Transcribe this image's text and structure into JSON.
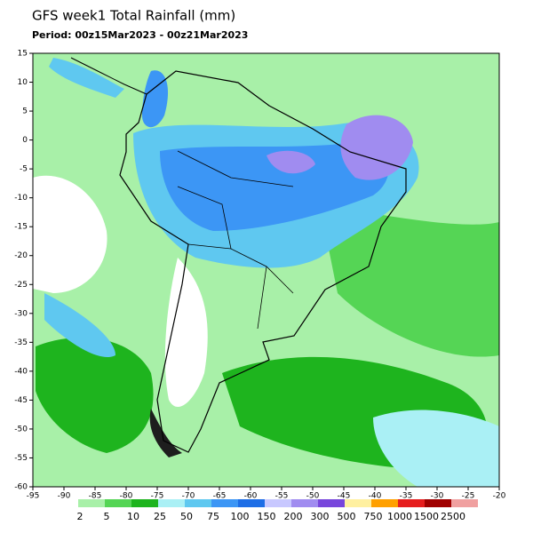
{
  "map": {
    "title": "GFS week1 Total Rainfall (mm)",
    "subtitle": "Period: 00z15Mar2023 - 00z21Mar2023",
    "xlim": [
      -95,
      -20
    ],
    "ylim": [
      -60,
      15
    ],
    "xticks": [
      -95,
      -90,
      -85,
      -80,
      -75,
      -70,
      -65,
      -60,
      -55,
      -50,
      -45,
      -40,
      -35,
      -30,
      -25,
      -20
    ],
    "yticks": [
      15,
      10,
      5,
      0,
      -5,
      -10,
      -15,
      -20,
      -25,
      -30,
      -35,
      -40,
      -45,
      -50,
      -55,
      -60
    ],
    "colorbar": {
      "levels": [
        2,
        5,
        10,
        25,
        50,
        75,
        100,
        150,
        200,
        300,
        500,
        750,
        1000,
        1500,
        2500
      ],
      "colors": [
        "#a8f0a8",
        "#55d555",
        "#1eb41e",
        "#aaf0f5",
        "#5fc8f0",
        "#3c96f5",
        "#1e6ee6",
        "#c8c8ff",
        "#a08cf0",
        "#7846dc",
        "#fff0a0",
        "#ffa000",
        "#e61e1e",
        "#a00000",
        "#f0a0a0"
      ]
    }
  }
}
